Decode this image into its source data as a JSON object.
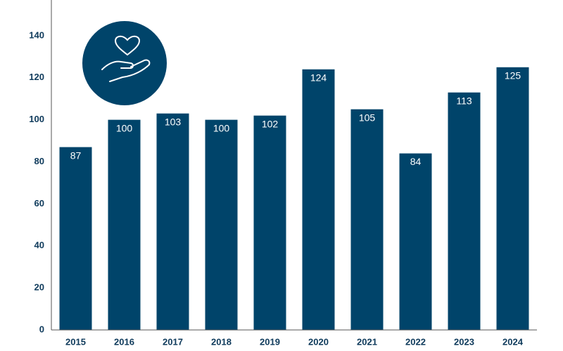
{
  "chart_data": {
    "type": "bar",
    "categories": [
      "2015",
      "2016",
      "2017",
      "2018",
      "2019",
      "2020",
      "2021",
      "2022",
      "2023",
      "2024"
    ],
    "values": [
      87,
      100,
      103,
      100,
      102,
      124,
      105,
      84,
      113,
      125
    ],
    "color": "#00446a",
    "ylim": [
      0,
      157
    ],
    "yticks": [
      0,
      20,
      40,
      60,
      80,
      100,
      120,
      140
    ],
    "grid": false
  }
}
